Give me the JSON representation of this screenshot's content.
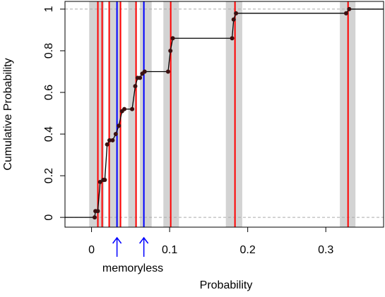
{
  "chart_data": {
    "type": "line",
    "x_label": "Probability",
    "y_label": "Cumulative Probability",
    "annotation": "memoryless",
    "xlim": [
      -0.034,
      0.374
    ],
    "ylim": [
      -0.047,
      1.037
    ],
    "xticks": [
      0,
      0.1,
      0.2,
      0.3
    ],
    "yticks": [
      0,
      0.2,
      0.4,
      0.6,
      0.8,
      1
    ],
    "hlines": [
      0,
      1
    ],
    "hline_color": "#aaaaaa",
    "band_color": "#d3d3d3",
    "bands": [
      [
        -0.003,
        0.016
      ],
      [
        0.022,
        0.037
      ],
      [
        0.047,
        0.058
      ],
      [
        0.062,
        0.077
      ],
      [
        0.092,
        0.112
      ],
      [
        0.172,
        0.193
      ],
      [
        0.318,
        0.338
      ]
    ],
    "red_color": "#ff0000",
    "red_lines": [
      0.0081,
      0.0136,
      0.0226,
      0.0371,
      0.057,
      0.1014,
      0.1837,
      0.3285
    ],
    "blue_color": "#0000ff",
    "blue_lines": [
      0.0326,
      0.067
    ],
    "color": "#000000",
    "point_color": "#3a1010",
    "x": [
      -0.034,
      0.004,
      0.005,
      0.008,
      0.011,
      0.015,
      0.017,
      0.02,
      0.023,
      0.027,
      0.031,
      0.035,
      0.039,
      0.042,
      0.052,
      0.056,
      0.059,
      0.062,
      0.065,
      0.068,
      0.098,
      0.101,
      0.104,
      0.18,
      0.182,
      0.185,
      0.326,
      0.33,
      0.374
    ],
    "values": [
      0,
      0,
      0.03,
      0.03,
      0.17,
      0.18,
      0.18,
      0.35,
      0.37,
      0.37,
      0.4,
      0.44,
      0.51,
      0.52,
      0.52,
      0.63,
      0.67,
      0.67,
      0.69,
      0.7,
      0.7,
      0.8,
      0.86,
      0.86,
      0.95,
      0.98,
      0.98,
      1,
      1
    ]
  }
}
